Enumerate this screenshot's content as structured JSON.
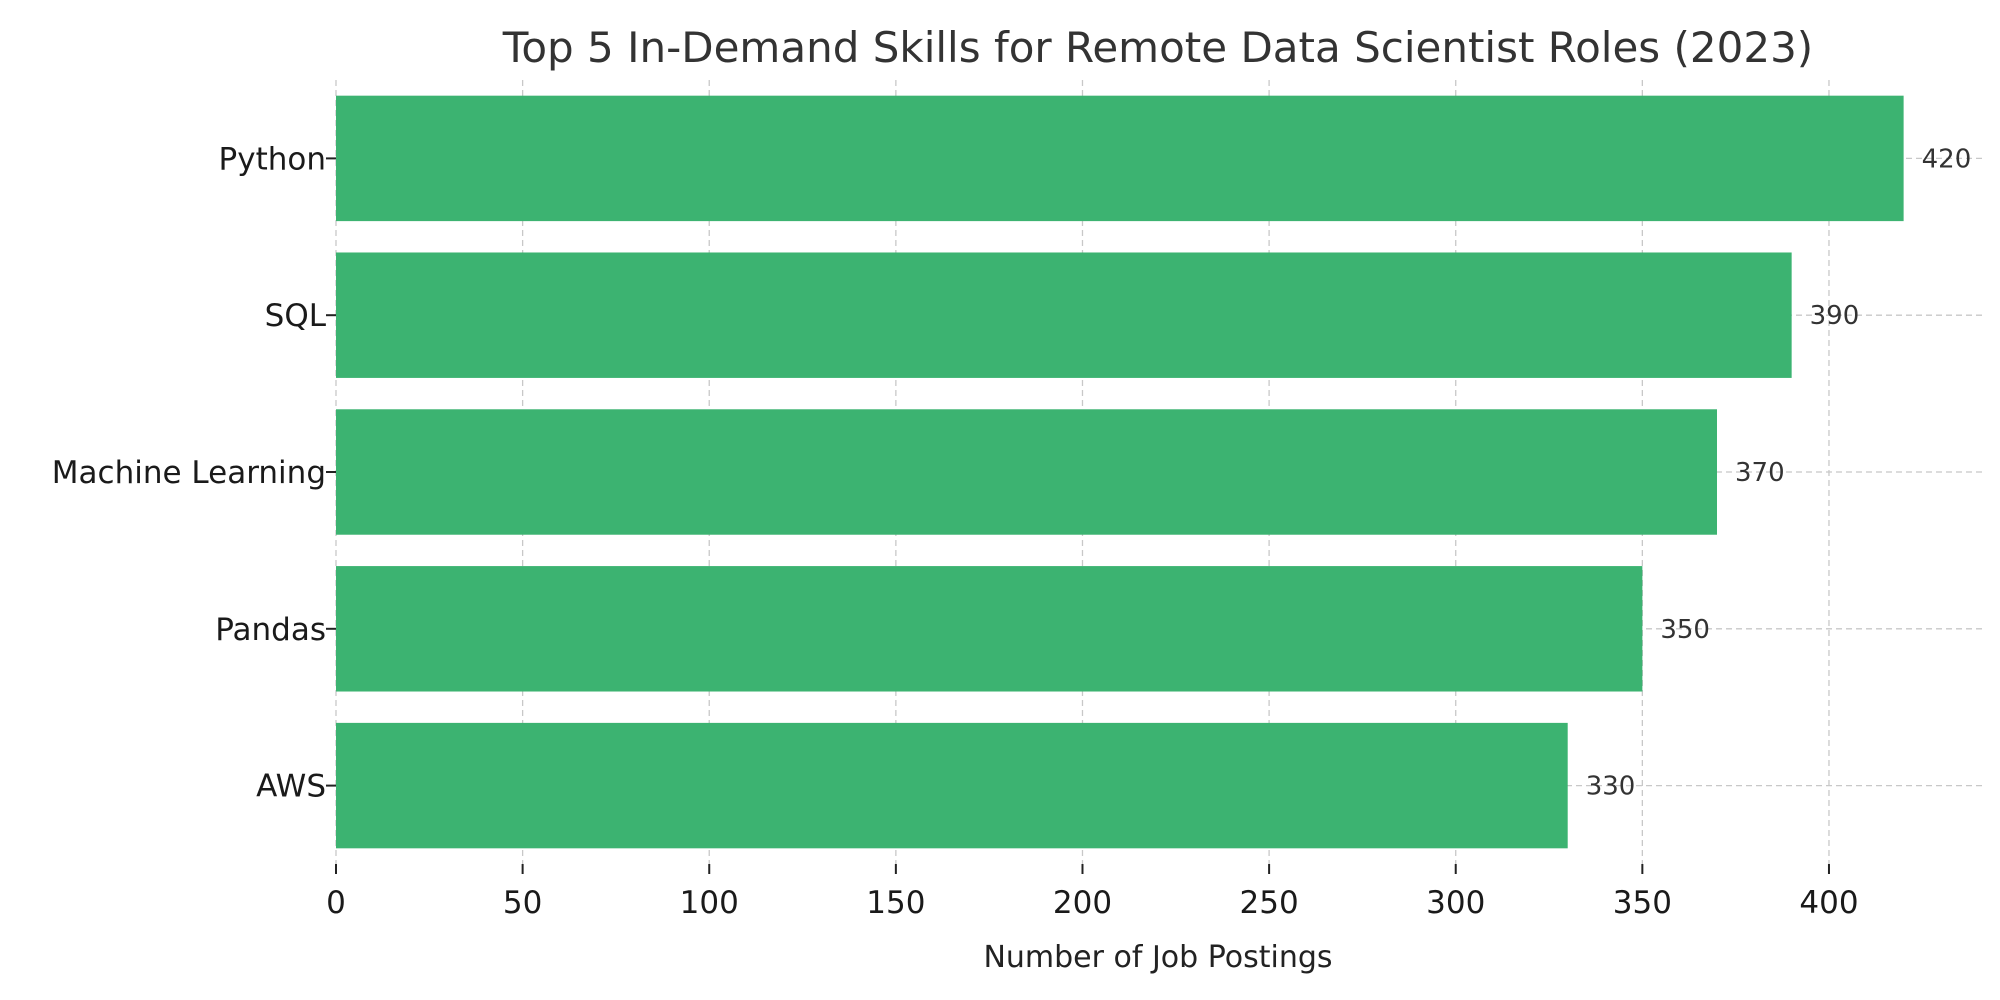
{
  "chart_data": {
    "type": "bar",
    "orientation": "horizontal",
    "title": "Top 5 In-Demand Skills for Remote Data Scientist Roles (2023)",
    "xlabel": "Number of Job Postings",
    "ylabel": "",
    "categories": [
      "Python",
      "SQL",
      "Machine Learning",
      "Pandas",
      "AWS"
    ],
    "values": [
      420,
      390,
      370,
      350,
      330
    ],
    "value_labels": [
      "420",
      "390",
      "370",
      "350",
      "330"
    ],
    "x_ticks": [
      0,
      50,
      100,
      150,
      200,
      250,
      300,
      350,
      400
    ],
    "x_tick_labels": [
      "0",
      "50",
      "100",
      "150",
      "200",
      "250",
      "300",
      "350",
      "400"
    ],
    "xlim": [
      0,
      441
    ],
    "grid": true,
    "bar_color": "#3cb371",
    "grid_color": "#c8c8c8"
  }
}
